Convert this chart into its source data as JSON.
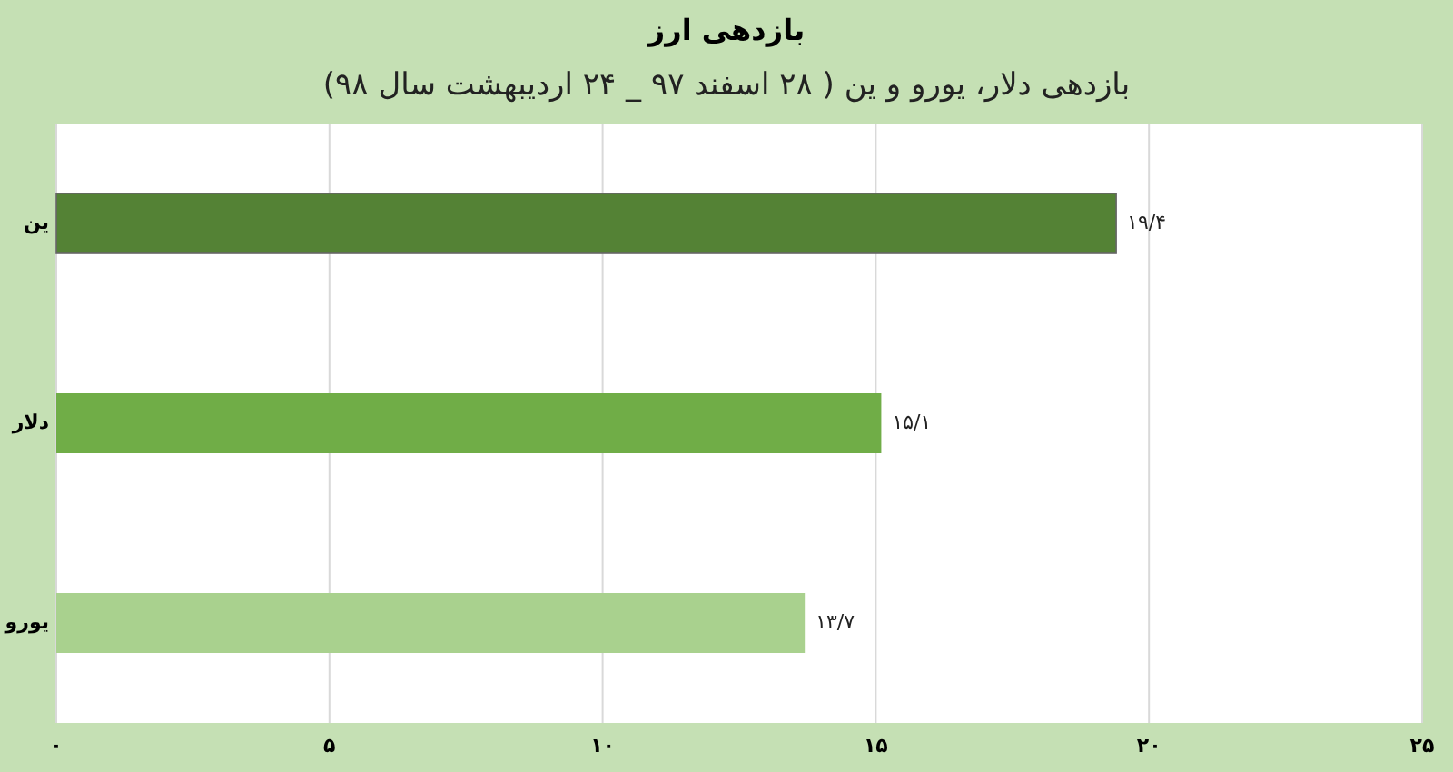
{
  "chart_data": {
    "type": "bar",
    "orientation": "horizontal",
    "title": "بازدهی ارز",
    "subtitle": "بازدهی دلار، یورو و ین ( ۲۸ اسفند ۹۷ _ ۲۴ اردیبهشت سال ۹۸)",
    "categories": [
      "ین",
      "دلار",
      "یورو"
    ],
    "values": [
      19.4,
      15.1,
      13.7
    ],
    "colors": [
      "#548235",
      "#70ad47",
      "#a9d18e"
    ],
    "value_labels": [
      "۱۹/۴",
      "۱۵/۱",
      "۱۳/۷"
    ],
    "xlim": [
      0,
      25
    ],
    "xticks": [
      {
        "value": 0,
        "label": "۰"
      },
      {
        "value": 5,
        "label": "۵"
      },
      {
        "value": 10,
        "label": "۱۰"
      },
      {
        "value": 15,
        "label": "۱۵"
      },
      {
        "value": 20,
        "label": "۲۰"
      },
      {
        "value": 25,
        "label": "۲۵"
      }
    ],
    "grid": "x"
  }
}
